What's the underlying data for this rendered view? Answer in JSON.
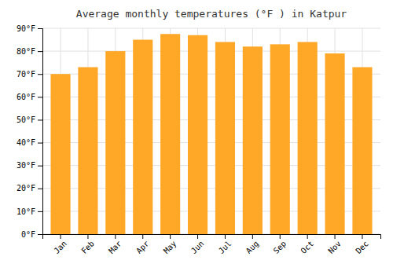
{
  "chart_data": {
    "type": "bar",
    "title": "Average monthly temperatures (°F ) in Katpur",
    "categories": [
      "Jan",
      "Feb",
      "Mar",
      "Apr",
      "May",
      "Jun",
      "Jul",
      "Aug",
      "Sep",
      "Oct",
      "Nov",
      "Dec"
    ],
    "values": [
      70,
      73,
      80,
      85,
      87.5,
      87,
      84,
      82,
      83,
      84,
      79,
      73
    ],
    "color": "#FFA726",
    "ylim": [
      0,
      90
    ],
    "yticks": [
      {
        "value": 0,
        "label": "0°F"
      },
      {
        "value": 10,
        "label": "10°F"
      },
      {
        "value": 20,
        "label": "20°F"
      },
      {
        "value": 30,
        "label": "30°F"
      },
      {
        "value": 40,
        "label": "40°F"
      },
      {
        "value": 50,
        "label": "50°F"
      },
      {
        "value": 60,
        "label": "60°F"
      },
      {
        "value": 70,
        "label": "70°F"
      },
      {
        "value": 80,
        "label": "80°F"
      },
      {
        "value": 90,
        "label": "90°F"
      }
    ],
    "grid": true
  }
}
